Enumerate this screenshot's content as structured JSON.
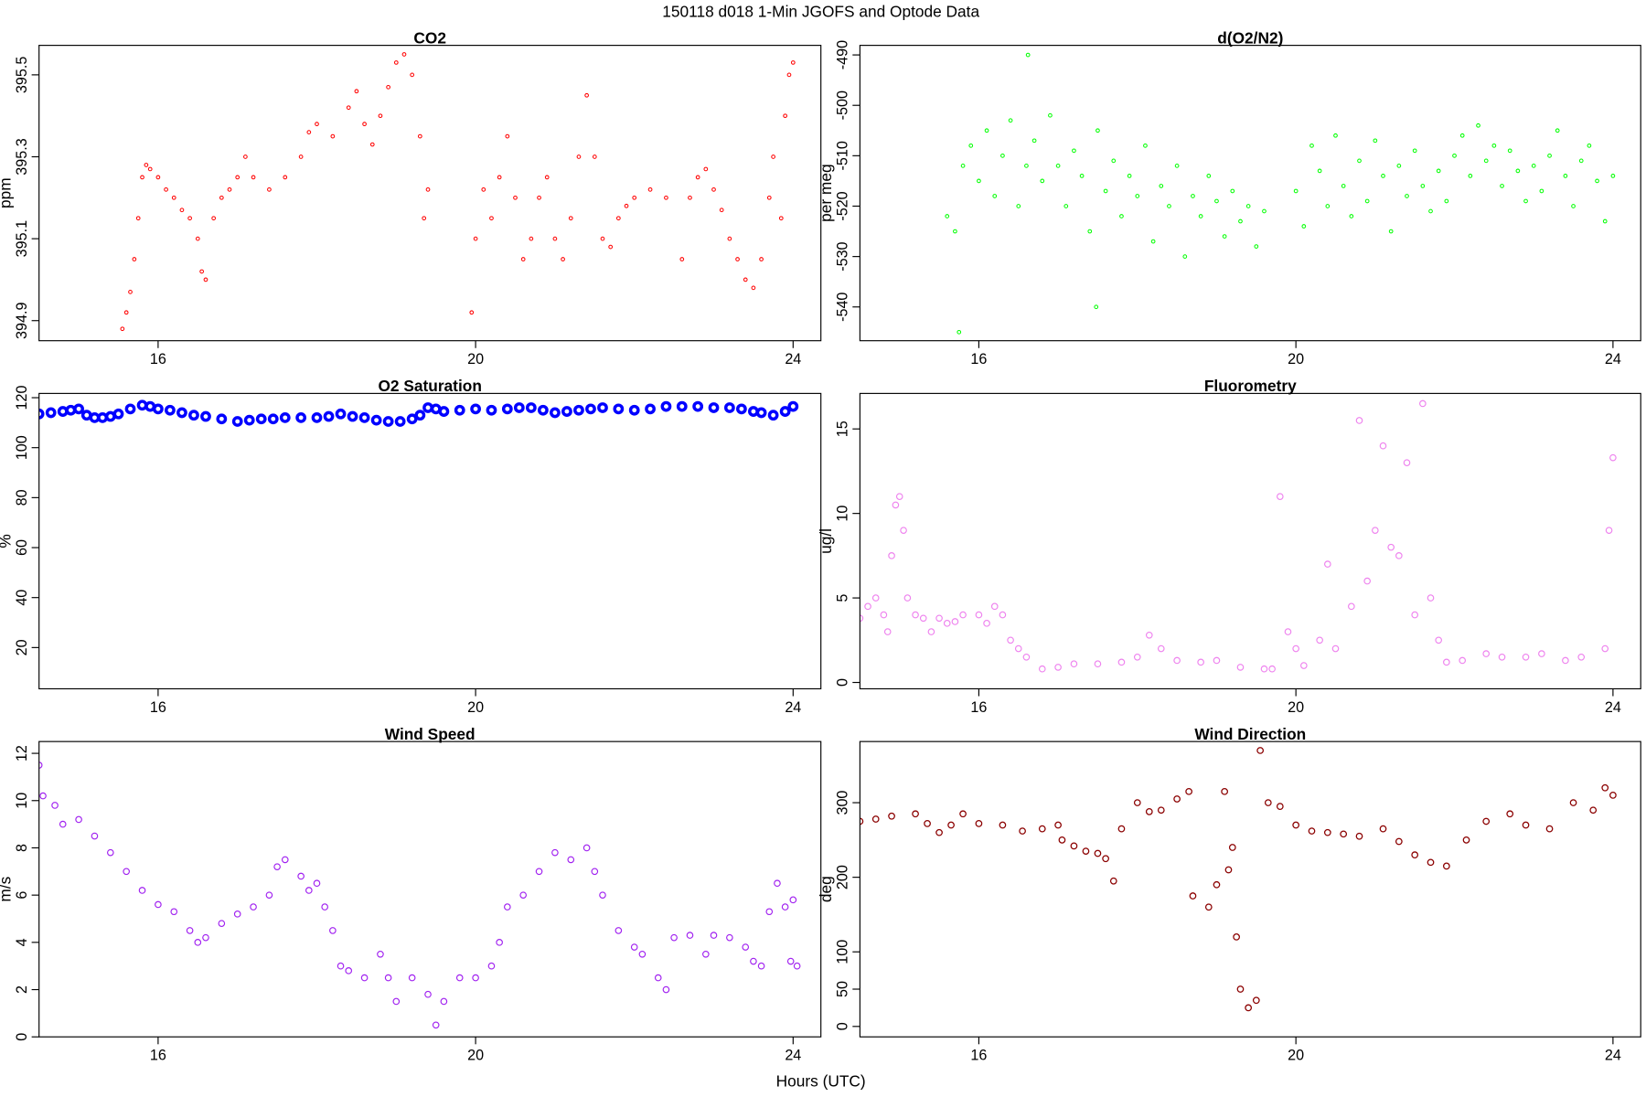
{
  "title": "150118   d018   1-Min  JGOFS and Optode Data",
  "x_label": "Hours (UTC)",
  "chart_data": [
    {
      "type": "scatter",
      "title": "CO2",
      "y_label": "ppm",
      "color": "#ff0000",
      "xlim": [
        14.5,
        24.35
      ],
      "xticks": [
        16,
        20,
        24
      ],
      "ylim": [
        394.851,
        395.572
      ],
      "yticks": [
        394.9,
        395.1,
        395.3,
        395.5
      ],
      "x": [
        15.55,
        15.6,
        15.65,
        15.7,
        15.75,
        15.8,
        15.85,
        15.9,
        16.0,
        16.1,
        16.2,
        16.3,
        16.4,
        16.5,
        16.55,
        16.6,
        16.7,
        16.8,
        16.9,
        17.0,
        17.1,
        17.2,
        17.4,
        17.6,
        17.8,
        17.9,
        18.0,
        18.2,
        18.4,
        18.5,
        18.6,
        18.7,
        18.8,
        18.9,
        19.0,
        19.1,
        19.2,
        19.3,
        19.35,
        19.4,
        19.95,
        20.0,
        20.1,
        20.2,
        20.3,
        20.4,
        20.5,
        20.6,
        20.7,
        20.8,
        20.9,
        21.0,
        21.1,
        21.2,
        21.3,
        21.4,
        21.5,
        21.6,
        21.7,
        21.8,
        21.9,
        22.0,
        22.2,
        22.4,
        22.6,
        22.7,
        22.8,
        22.9,
        23.0,
        23.1,
        23.2,
        23.3,
        23.4,
        23.5,
        23.6,
        23.7,
        23.75,
        23.85,
        23.9,
        23.95,
        24.0
      ],
      "values": [
        394.88,
        394.92,
        394.97,
        395.05,
        395.15,
        395.25,
        395.28,
        395.27,
        395.25,
        395.22,
        395.2,
        395.17,
        395.15,
        395.1,
        395.02,
        395.0,
        395.15,
        395.2,
        395.22,
        395.25,
        395.3,
        395.25,
        395.22,
        395.25,
        395.3,
        395.36,
        395.38,
        395.35,
        395.42,
        395.46,
        395.38,
        395.33,
        395.4,
        395.47,
        395.53,
        395.55,
        395.5,
        395.35,
        395.15,
        395.22,
        394.92,
        395.1,
        395.22,
        395.15,
        395.25,
        395.35,
        395.2,
        395.05,
        395.1,
        395.2,
        395.25,
        395.1,
        395.05,
        395.15,
        395.3,
        395.45,
        395.3,
        395.1,
        395.08,
        395.15,
        395.18,
        395.2,
        395.22,
        395.2,
        395.05,
        395.2,
        395.25,
        395.27,
        395.22,
        395.17,
        395.1,
        395.05,
        395.0,
        394.98,
        395.05,
        395.2,
        395.3,
        395.15,
        395.4,
        395.5,
        395.53
      ]
    },
    {
      "type": "scatter",
      "title": "d(O2/N2)",
      "y_label": "per meg",
      "color": "#00ff00",
      "xlim": [
        14.5,
        24.35
      ],
      "xticks": [
        16,
        20,
        24
      ],
      "ylim": [
        -546.7,
        -488.1
      ],
      "yticks": [
        -540,
        -530,
        -520,
        -510,
        -500,
        -490
      ],
      "x": [
        15.6,
        15.7,
        15.75,
        15.8,
        15.9,
        16.0,
        16.1,
        16.2,
        16.3,
        16.4,
        16.5,
        16.6,
        16.62,
        16.7,
        16.8,
        16.9,
        17.0,
        17.1,
        17.2,
        17.3,
        17.4,
        17.48,
        17.5,
        17.6,
        17.7,
        17.8,
        17.9,
        18.0,
        18.1,
        18.2,
        18.3,
        18.4,
        18.5,
        18.6,
        18.7,
        18.8,
        18.9,
        19.0,
        19.1,
        19.2,
        19.3,
        19.4,
        19.5,
        19.6,
        20.0,
        20.1,
        20.2,
        20.3,
        20.4,
        20.5,
        20.6,
        20.7,
        20.8,
        20.9,
        21.0,
        21.1,
        21.2,
        21.3,
        21.4,
        21.5,
        21.6,
        21.7,
        21.8,
        21.9,
        22.0,
        22.1,
        22.2,
        22.3,
        22.4,
        22.5,
        22.6,
        22.7,
        22.8,
        22.9,
        23.0,
        23.1,
        23.2,
        23.3,
        23.4,
        23.5,
        23.6,
        23.7,
        23.8,
        23.9,
        24.0
      ],
      "values": [
        -522,
        -525,
        -545,
        -512,
        -508,
        -515,
        -505,
        -518,
        -510,
        -503,
        -520,
        -512,
        -490,
        -507,
        -515,
        -502,
        -512,
        -520,
        -509,
        -514,
        -525,
        -540,
        -505,
        -517,
        -511,
        -522,
        -514,
        -518,
        -508,
        -527,
        -516,
        -520,
        -512,
        -530,
        -518,
        -522,
        -514,
        -519,
        -526,
        -517,
        -523,
        -520,
        -528,
        -521,
        -517,
        -524,
        -508,
        -513,
        -520,
        -506,
        -516,
        -522,
        -511,
        -519,
        -507,
        -514,
        -525,
        -512,
        -518,
        -509,
        -516,
        -521,
        -513,
        -519,
        -510,
        -506,
        -514,
        -504,
        -511,
        -508,
        -516,
        -509,
        -513,
        -519,
        -512,
        -517,
        -510,
        -505,
        -514,
        -520,
        -511,
        -508,
        -515,
        -523,
        -514
      ]
    },
    {
      "type": "scatter",
      "title": "O2 Saturation",
      "y_label": "%",
      "color": "#0000ff",
      "xlim": [
        14.5,
        24.35
      ],
      "xticks": [
        16,
        20,
        24
      ],
      "ylim": [
        3.5,
        121.7
      ],
      "yticks": [
        20,
        40,
        60,
        80,
        100,
        120
      ],
      "x": [
        14.5,
        14.65,
        14.8,
        14.9,
        15.0,
        15.1,
        15.2,
        15.3,
        15.4,
        15.5,
        15.65,
        15.8,
        15.9,
        16.0,
        16.15,
        16.3,
        16.45,
        16.6,
        16.8,
        17.0,
        17.15,
        17.3,
        17.45,
        17.6,
        17.8,
        18.0,
        18.15,
        18.3,
        18.45,
        18.6,
        18.75,
        18.9,
        19.05,
        19.2,
        19.3,
        19.4,
        19.5,
        19.6,
        19.8,
        20.0,
        20.2,
        20.4,
        20.55,
        20.7,
        20.85,
        21.0,
        21.15,
        21.3,
        21.45,
        21.6,
        21.8,
        22.0,
        22.2,
        22.4,
        22.6,
        22.8,
        23.0,
        23.2,
        23.35,
        23.5,
        23.6,
        23.75,
        23.9,
        24.0
      ],
      "values": [
        113.5,
        114,
        114.5,
        115,
        115.5,
        113,
        112,
        112,
        112.5,
        113.5,
        115.5,
        117,
        116.5,
        115.5,
        115,
        114,
        113,
        112.5,
        111.5,
        110.5,
        111,
        111.5,
        111.5,
        112,
        112,
        112,
        112.5,
        113.5,
        112.5,
        112,
        111,
        110.5,
        110.5,
        111.5,
        113,
        116,
        115.5,
        114.5,
        115,
        115.5,
        115,
        115.5,
        116,
        116,
        115,
        114,
        114.5,
        115,
        115.5,
        116,
        115.5,
        115,
        115.5,
        116.5,
        116.5,
        116.5,
        116,
        116,
        115.5,
        114.5,
        114,
        113,
        114.5,
        116.5
      ]
    },
    {
      "type": "scatter",
      "title": "Fluorometry",
      "y_label": "ug/l",
      "color": "#ee82ee",
      "xlim": [
        14.5,
        24.35
      ],
      "xticks": [
        16,
        20,
        24
      ],
      "ylim": [
        -0.375,
        17.1
      ],
      "yticks": [
        0,
        5,
        10,
        15
      ],
      "x": [
        14.5,
        14.6,
        14.7,
        14.8,
        14.85,
        14.9,
        14.95,
        15.0,
        15.05,
        15.1,
        15.2,
        15.3,
        15.4,
        15.5,
        15.6,
        15.7,
        15.8,
        16.0,
        16.1,
        16.2,
        16.3,
        16.4,
        16.5,
        16.6,
        16.8,
        17.0,
        17.2,
        17.5,
        17.8,
        18.0,
        18.15,
        18.3,
        18.5,
        18.8,
        19.0,
        19.3,
        19.6,
        19.7,
        19.8,
        19.9,
        20.0,
        20.1,
        20.3,
        20.4,
        20.5,
        20.7,
        20.8,
        20.9,
        21.0,
        21.1,
        21.2,
        21.3,
        21.4,
        21.5,
        21.6,
        21.7,
        21.8,
        21.9,
        22.1,
        22.4,
        22.6,
        22.9,
        23.1,
        23.4,
        23.6,
        23.9,
        23.95,
        24.0
      ],
      "values": [
        3.8,
        4.5,
        5,
        4,
        3,
        7.5,
        10.5,
        11,
        9,
        5,
        4,
        3.8,
        3,
        3.8,
        3.5,
        3.6,
        4,
        4,
        3.5,
        4.5,
        4,
        2.5,
        2,
        1.5,
        0.8,
        0.9,
        1.1,
        1.1,
        1.2,
        1.5,
        2.8,
        2,
        1.3,
        1.2,
        1.3,
        0.9,
        0.8,
        0.8,
        11,
        3,
        2,
        1,
        2.5,
        7,
        2,
        4.5,
        15.5,
        6,
        9,
        14,
        8,
        7.5,
        13,
        4,
        16.5,
        5,
        2.5,
        1.2,
        1.3,
        1.7,
        1.5,
        1.5,
        1.7,
        1.3,
        1.5,
        2,
        9,
        13.3
      ]
    },
    {
      "type": "scatter",
      "title": "Wind Speed",
      "y_label": "m/s",
      "color": "#a020f0",
      "xlim": [
        14.5,
        24.35
      ],
      "xticks": [
        16,
        20,
        24
      ],
      "ylim": [
        0,
        12.5
      ],
      "yticks": [
        0,
        2,
        4,
        6,
        8,
        10,
        12
      ],
      "x": [
        14.5,
        14.55,
        14.7,
        14.8,
        15.0,
        15.2,
        15.4,
        15.6,
        15.8,
        16.0,
        16.2,
        16.4,
        16.5,
        16.6,
        16.8,
        17.0,
        17.2,
        17.4,
        17.5,
        17.6,
        17.8,
        17.9,
        18.0,
        18.1,
        18.2,
        18.3,
        18.4,
        18.6,
        18.8,
        18.9,
        19.0,
        19.2,
        19.4,
        19.5,
        19.6,
        19.8,
        20.0,
        20.2,
        20.3,
        20.4,
        20.6,
        20.8,
        21.0,
        21.2,
        21.4,
        21.5,
        21.6,
        21.8,
        22.0,
        22.1,
        22.3,
        22.4,
        22.5,
        22.7,
        22.9,
        23.0,
        23.2,
        23.4,
        23.5,
        23.6,
        23.7,
        23.8,
        23.9,
        24.0,
        24.05,
        23.97
      ],
      "values": [
        11.5,
        10.2,
        9.8,
        9,
        9.2,
        8.5,
        7.8,
        7,
        6.2,
        5.6,
        5.3,
        4.5,
        4,
        4.2,
        4.8,
        5.2,
        5.5,
        6,
        7.2,
        7.5,
        6.8,
        6.2,
        6.5,
        5.5,
        4.5,
        3,
        2.8,
        2.5,
        3.5,
        2.5,
        1.5,
        2.5,
        1.8,
        0.5,
        1.5,
        2.5,
        2.5,
        3,
        4,
        5.5,
        6,
        7,
        7.8,
        7.5,
        8,
        7,
        6,
        4.5,
        3.8,
        3.5,
        2.5,
        2,
        4.2,
        4.3,
        3.5,
        4.3,
        4.2,
        3.8,
        3.2,
        3,
        5.3,
        6.5,
        5.5,
        5.8,
        3,
        3.2
      ]
    },
    {
      "type": "scatter",
      "title": "Wind Direction",
      "y_label": "deg",
      "color": "#8b0000",
      "xlim": [
        14.5,
        24.35
      ],
      "xticks": [
        16,
        20,
        24
      ],
      "ylim": [
        -14,
        382
      ],
      "yticks": [
        0,
        50,
        100,
        200,
        300
      ],
      "x": [
        14.5,
        14.7,
        14.9,
        15.2,
        15.35,
        15.5,
        15.65,
        15.8,
        16.0,
        16.3,
        16.55,
        16.8,
        17.0,
        17.05,
        17.2,
        17.35,
        17.5,
        17.6,
        17.7,
        17.8,
        18.0,
        18.15,
        18.3,
        18.5,
        18.65,
        18.7,
        18.9,
        19.0,
        19.1,
        19.15,
        19.2,
        19.25,
        19.3,
        19.4,
        19.5,
        19.55,
        19.65,
        19.8,
        20.0,
        20.2,
        20.4,
        20.6,
        20.8,
        21.1,
        21.3,
        21.5,
        21.7,
        21.9,
        22.15,
        22.4,
        22.7,
        22.9,
        23.2,
        23.5,
        23.75,
        23.9,
        24.0
      ],
      "values": [
        275,
        278,
        282,
        285,
        272,
        260,
        270,
        285,
        272,
        270,
        262,
        265,
        270,
        250,
        242,
        235,
        232,
        225,
        195,
        265,
        300,
        288,
        290,
        305,
        315,
        175,
        160,
        190,
        315,
        210,
        240,
        120,
        50,
        25,
        35,
        370,
        300,
        295,
        270,
        262,
        260,
        258,
        255,
        265,
        248,
        230,
        220,
        215,
        250,
        275,
        285,
        270,
        265,
        300,
        290,
        320,
        310
      ]
    }
  ]
}
